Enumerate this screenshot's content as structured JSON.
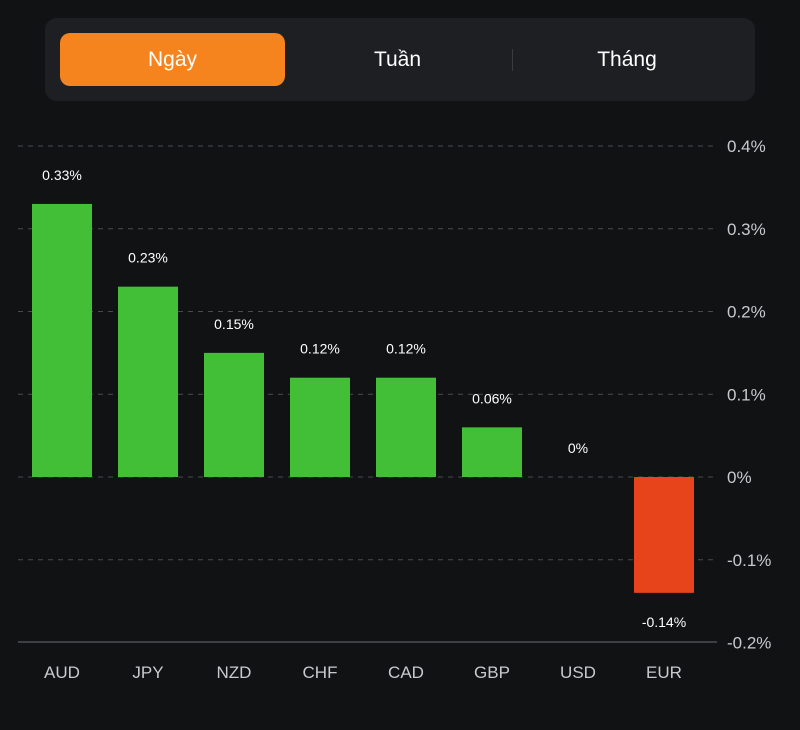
{
  "tabs": [
    {
      "label": "Ngày",
      "active": true
    },
    {
      "label": "Tuần",
      "active": false
    },
    {
      "label": "Tháng",
      "active": false
    }
  ],
  "colors": {
    "accent": "#f5841f",
    "positive": "#42be37",
    "negative": "#e8441c"
  },
  "chart_data": {
    "type": "bar",
    "title": "",
    "xlabel": "",
    "ylabel": "",
    "categories": [
      "AUD",
      "JPY",
      "NZD",
      "CHF",
      "CAD",
      "GBP",
      "USD",
      "EUR"
    ],
    "values": [
      0.33,
      0.23,
      0.15,
      0.12,
      0.12,
      0.06,
      0,
      -0.14
    ],
    "value_labels": [
      "0.33%",
      "0.23%",
      "0.15%",
      "0.12%",
      "0.12%",
      "0.06%",
      "0%",
      "-0.14%"
    ],
    "ylim": [
      -0.2,
      0.4
    ],
    "yticks": [
      0.4,
      0.3,
      0.2,
      0.1,
      0,
      -0.1,
      -0.2
    ],
    "ytick_labels": [
      "0.4%",
      "0.3%",
      "0.2%",
      "0.1%",
      "0%",
      "-0.1%",
      "-0.2%"
    ],
    "y_axis_position": "right",
    "grid": true,
    "unit": "%"
  }
}
